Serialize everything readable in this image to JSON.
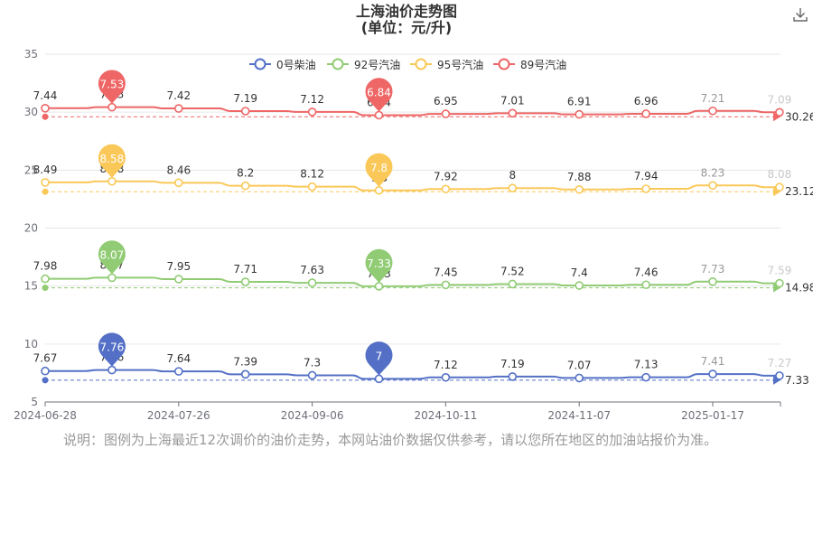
{
  "title": "上海油价走势图",
  "subtitle": "(单位：元/升)",
  "note": "说明：图例为上海最近12次调价的油价走势，本网站油价数据仅供参考，请以您所在地区的加油站报价为准。",
  "toolbar": {
    "download_icon": "download-icon"
  },
  "chart_data": {
    "type": "line",
    "categories": [
      "2024-06-28",
      "",
      "2024-07-26",
      "",
      "2024-09-06",
      "",
      "2024-10-11",
      "",
      "2024-11-07",
      "",
      "2025-01-17",
      ""
    ],
    "x_tick_labels": [
      "2024-06-28",
      "2024-07-26",
      "2024-09-06",
      "2024-10-11",
      "2024-11-07",
      "2025-01-17"
    ],
    "y_axis": {
      "min": 5,
      "max": 35,
      "ticks": [
        5,
        10,
        15,
        20,
        25,
        30,
        35
      ]
    },
    "grid": true,
    "legend_position": "top-center",
    "series": [
      {
        "name": "0号柴油",
        "color": "#5470c6",
        "labels": [
          7.67,
          7.76,
          7.64,
          7.39,
          7.3,
          7.0,
          7.12,
          7.19,
          7.07,
          7.13,
          7.41,
          7.27
        ],
        "max_label": "7.76",
        "min_label": "7",
        "average": "7.33"
      },
      {
        "name": "92号汽油",
        "color": "#91cc75",
        "labels": [
          7.98,
          8.07,
          7.95,
          7.71,
          7.63,
          7.33,
          7.45,
          7.52,
          7.4,
          7.46,
          7.73,
          7.59
        ],
        "max_label": "8.07",
        "min_label": "7.33",
        "average": "14.98"
      },
      {
        "name": "95号汽油",
        "color": "#fac858",
        "labels": [
          8.49,
          8.58,
          8.46,
          8.2,
          8.12,
          7.8,
          7.92,
          8.0,
          7.88,
          7.94,
          8.23,
          8.08
        ],
        "max_label": "8.58",
        "min_label": "7.8",
        "average": "23.12"
      },
      {
        "name": "89号汽油",
        "color": "#ee6666",
        "labels": [
          7.44,
          7.53,
          7.42,
          7.19,
          7.12,
          6.84,
          6.95,
          7.01,
          6.91,
          6.96,
          7.21,
          7.09
        ],
        "max_label": "7.53",
        "min_label": "6.84",
        "average": "30.26"
      }
    ]
  }
}
